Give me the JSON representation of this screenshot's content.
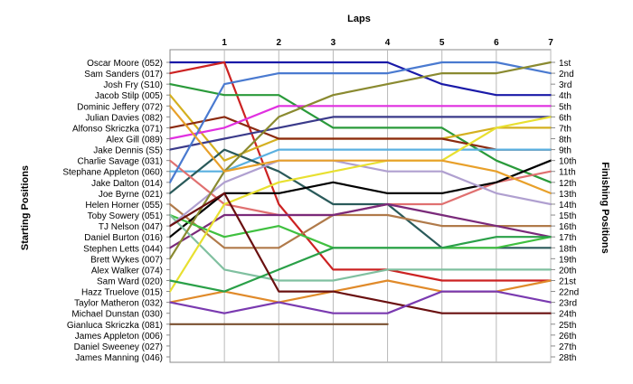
{
  "chart_data": {
    "type": "line",
    "title": "Laps",
    "ylabel_left": "Starting Positions",
    "ylabel_right": "Finishing Positions",
    "x": [
      0,
      1,
      2,
      3,
      4,
      5,
      6,
      7
    ],
    "x_tick_labels": [
      "1",
      "2",
      "3",
      "4",
      "5",
      "6",
      "7"
    ],
    "xlim": [
      0,
      7
    ],
    "ylim": [
      1,
      28
    ],
    "y_inverted": true,
    "grid": "vertical",
    "finishing_position_labels": [
      "1st",
      "2nd",
      "3rd",
      "4th",
      "5th",
      "6th",
      "7th",
      "8th",
      "9th",
      "10th",
      "11th",
      "12th",
      "13th",
      "14th",
      "15th",
      "16th",
      "17th",
      "18th",
      "19th",
      "20th",
      "21st",
      "22nd",
      "23rd",
      "24th",
      "25th",
      "26th",
      "27th",
      "28th"
    ],
    "series": [
      {
        "name": "Oscar Moore (052)",
        "color": "#1a1aa8",
        "positions": [
          1,
          1,
          1,
          1,
          1,
          3,
          4,
          4
        ]
      },
      {
        "name": "Sam Sanders (017)",
        "color": "#cc2222",
        "positions": [
          2,
          1,
          14,
          20,
          20,
          21,
          21,
          21
        ]
      },
      {
        "name": "Josh Fry (S10)",
        "color": "#2a9a3a",
        "positions": [
          3,
          4,
          4,
          7,
          7,
          7,
          10,
          12
        ]
      },
      {
        "name": "Jacob Stilp (005)",
        "color": "#e08a2a",
        "positions": [
          23,
          22,
          23,
          22,
          21,
          22,
          22,
          21
        ]
      },
      {
        "name": "Dominic Jeffery (072)",
        "color": "#d4b020",
        "positions": [
          4,
          10,
          8,
          8,
          8,
          8,
          7,
          7
        ]
      },
      {
        "name": "Julian Davies (082)",
        "color": "#8b2a10",
        "positions": [
          7,
          6,
          8,
          8,
          8,
          8,
          9,
          9
        ]
      },
      {
        "name": "Alfonso Skriczka (071)",
        "color": "#e030e0",
        "positions": [
          8,
          7,
          5,
          5,
          5,
          5,
          5,
          5
        ]
      },
      {
        "name": "Alex Gill (089)",
        "color": "#5ab0e0",
        "positions": [
          11,
          11,
          9,
          9,
          9,
          9,
          9,
          9
        ]
      },
      {
        "name": "Jake Dennis (S5)",
        "color": "#3a3a8a",
        "positions": [
          9,
          8,
          7,
          6,
          6,
          6,
          6,
          6
        ]
      },
      {
        "name": "Charlie Savage (031)",
        "color": "#2a5a5a",
        "positions": [
          13,
          9,
          11,
          14,
          14,
          18,
          18,
          18
        ]
      },
      {
        "name": "Stephane Appleton (060)",
        "color": "#b07a4a",
        "positions": [
          14,
          18,
          18,
          15,
          15,
          16,
          16,
          16
        ]
      },
      {
        "name": "Jake Dalton (014)",
        "color": "#e07070",
        "positions": [
          10,
          14,
          15,
          15,
          14,
          14,
          12,
          11
        ]
      },
      {
        "name": "Joe Byrne (021)",
        "color": "#000000",
        "positions": [
          17,
          13,
          13,
          12,
          13,
          13,
          12,
          10
        ]
      },
      {
        "name": "Helen Horner (055)",
        "color": "#7a2a7a",
        "positions": [
          18,
          15,
          15,
          15,
          14,
          15,
          16,
          17
        ]
      },
      {
        "name": "Toby Sowery (051)",
        "color": "#40c040",
        "positions": [
          15,
          17,
          16,
          18,
          18,
          18,
          18,
          17
        ]
      },
      {
        "name": "TJ Nelson (047)",
        "color": "#b0a0d0",
        "positions": [
          16,
          12,
          10,
          10,
          11,
          11,
          13,
          14
        ]
      },
      {
        "name": "Daniel Burton (016)",
        "color": "#80c0a0",
        "positions": [
          15,
          20,
          21,
          21,
          20,
          20,
          20,
          20
        ]
      },
      {
        "name": "Stephen Letts (044)",
        "color": "#4a7ad0",
        "positions": [
          12,
          3,
          2,
          2,
          2,
          1,
          1,
          2
        ]
      },
      {
        "name": "Brett Wykes (007)",
        "color": "#8a8a30",
        "positions": [
          19,
          11,
          6,
          4,
          3,
          2,
          2,
          1
        ]
      },
      {
        "name": "Alex Walker (074)",
        "color": "#e8e030",
        "positions": [
          22,
          14,
          12,
          11,
          10,
          10,
          7,
          6
        ]
      },
      {
        "name": "Sam Ward (020)",
        "color": "#2aa048",
        "positions": [
          21,
          22,
          20,
          18,
          18,
          18,
          17,
          17
        ]
      },
      {
        "name": "Hazz Truelove (015)",
        "color": "#6a1010",
        "positions": [
          16,
          13,
          22,
          22,
          23,
          24,
          24,
          24
        ]
      },
      {
        "name": "Taylor Matheron (032)",
        "color": "#7a3ab0",
        "positions": [
          23,
          24,
          23,
          24,
          24,
          22,
          22,
          23
        ]
      },
      {
        "name": "Michael Dunstan (030)",
        "color": "#e8a02a",
        "positions": [
          5,
          11,
          10,
          10,
          10,
          10,
          11,
          13
        ]
      },
      {
        "name": "Gianluca Skriczka (081)",
        "color": "#7a5030",
        "positions": [
          25,
          25,
          25,
          25,
          25
        ]
      },
      {
        "name": "James Appleton (006)",
        "color": "#c0c0c0",
        "positions": []
      },
      {
        "name": "Daniel Sweeney (027)",
        "color": "#c0c0c0",
        "positions": []
      },
      {
        "name": "James Manning (046)",
        "color": "#c0c0c0",
        "positions": []
      }
    ]
  }
}
